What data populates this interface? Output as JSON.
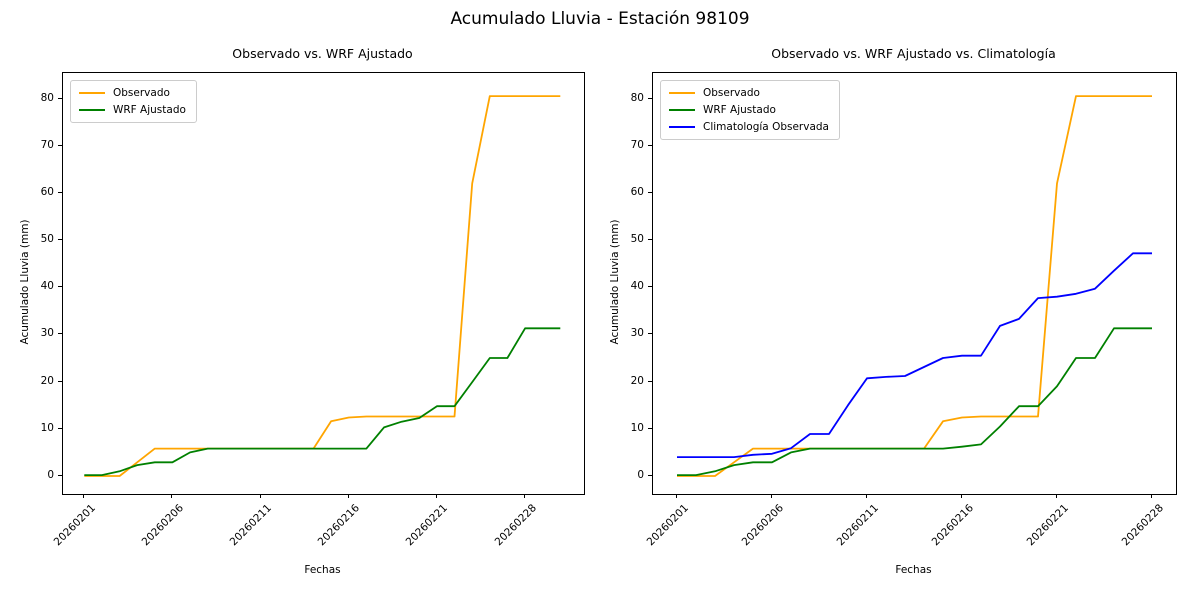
{
  "suptitle": "Acumulado Lluvia - Estación 98109",
  "colors": {
    "observado": "#FFA500",
    "wrf_ajustado": "#008000",
    "climatologia": "#0000FF"
  },
  "chart_data": [
    {
      "type": "line",
      "title": "Observado vs. WRF Ajustado",
      "xlabel": "Fechas",
      "ylabel": "Acumulado Lluvia (mm)",
      "legend_position": "upper left",
      "grid": false,
      "y_ticks": [
        0,
        10,
        20,
        30,
        40,
        50,
        60,
        70,
        80
      ],
      "ylim": [
        0,
        80.5
      ],
      "n_points": 28,
      "x_tick_positions": [
        0,
        5,
        10,
        15,
        20,
        25
      ],
      "x_tick_labels": [
        "20260201",
        "20260206",
        "20260211",
        "20260216",
        "20260221",
        "20260228"
      ],
      "series": [
        {
          "name": "Observado",
          "color": "#FFA500",
          "values": [
            0,
            0,
            0,
            2.9,
            5.8,
            5.8,
            5.8,
            5.8,
            5.8,
            5.8,
            5.8,
            5.8,
            5.8,
            5.8,
            11.6,
            12.4,
            12.6,
            12.6,
            12.6,
            12.6,
            12.6,
            12.6,
            62,
            80.5,
            80.5,
            80.5,
            80.5,
            80.5
          ]
        },
        {
          "name": "WRF Ajustado",
          "color": "#008000",
          "values": [
            0.2,
            0.2,
            1.0,
            2.3,
            2.9,
            2.9,
            5.0,
            5.8,
            5.8,
            5.8,
            5.8,
            5.8,
            5.8,
            5.8,
            5.8,
            5.8,
            5.8,
            10.3,
            11.5,
            12.3,
            14.8,
            14.8,
            19.9,
            25,
            25,
            31.3,
            31.3,
            31.3
          ]
        }
      ]
    },
    {
      "type": "line",
      "title": "Observado vs. WRF Ajustado vs. Climatología",
      "xlabel": "Fechas",
      "ylabel": "Acumulado Lluvia (mm)",
      "legend_position": "upper left",
      "grid": false,
      "y_ticks": [
        0,
        10,
        20,
        30,
        40,
        50,
        60,
        70,
        80
      ],
      "ylim": [
        0,
        80.5
      ],
      "n_points": 26,
      "x_tick_positions": [
        0,
        5,
        10,
        15,
        20,
        25
      ],
      "x_tick_labels": [
        "20260201",
        "20260206",
        "20260211",
        "20260216",
        "20260221",
        "20260228"
      ],
      "series": [
        {
          "name": "Observado",
          "color": "#FFA500",
          "values": [
            0,
            0,
            0,
            2.9,
            5.8,
            5.8,
            5.8,
            5.8,
            5.8,
            5.8,
            5.8,
            5.8,
            5.8,
            5.8,
            11.6,
            12.4,
            12.6,
            12.6,
            12.6,
            12.6,
            62,
            80.5,
            80.5,
            80.5,
            80.5,
            80.5
          ]
        },
        {
          "name": "WRF Ajustado",
          "color": "#008000",
          "values": [
            0.2,
            0.2,
            1.0,
            2.3,
            2.9,
            2.9,
            5.0,
            5.8,
            5.8,
            5.8,
            5.8,
            5.8,
            5.8,
            5.8,
            5.8,
            6.2,
            6.7,
            10.5,
            14.8,
            14.8,
            19,
            25,
            25,
            31.3,
            31.3,
            31.3
          ]
        },
        {
          "name": "Climatología Observada",
          "color": "#0000FF",
          "values": [
            4,
            4,
            4,
            4,
            4.5,
            4.7,
            5.9,
            8.9,
            8.9,
            15,
            20.7,
            21,
            21.2,
            23.1,
            25,
            25.5,
            25.5,
            31.8,
            33.3,
            37.7,
            38,
            38.6,
            39.7,
            43.5,
            47.2,
            47.2
          ]
        }
      ]
    }
  ]
}
